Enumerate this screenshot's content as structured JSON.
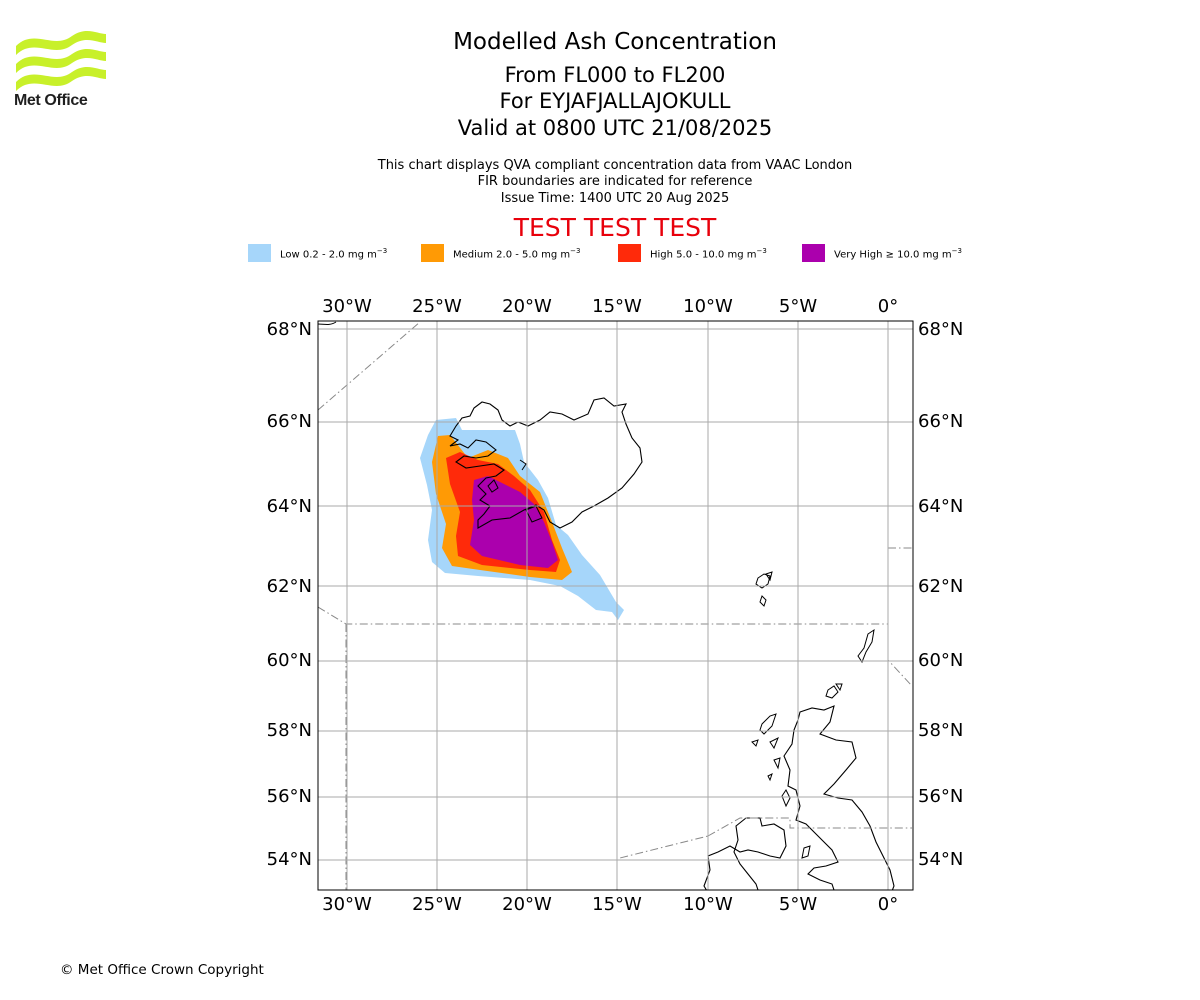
{
  "logo": {
    "text": "Met Office",
    "color": "#c8f02a"
  },
  "header": {
    "title": "Modelled Ash Concentration",
    "levels": "From FL000 to FL200",
    "volcano": "For EYJAFJALLAJOKULL",
    "valid": "Valid at 0800 UTC 21/08/2025",
    "note1": "This chart displays QVA compliant concentration data from VAAC London",
    "note2": "FIR boundaries are indicated for reference",
    "issue": "Issue Time: 1400 UTC 20 Aug 2025",
    "test": "TEST TEST TEST"
  },
  "legend": [
    {
      "label": "Low 0.2 - 2.0 mg m",
      "color": "#a6d6fa"
    },
    {
      "label": "Medium 2.0 - 5.0 mg m",
      "color": "#ff9a05"
    },
    {
      "label": "High 5.0 - 10.0 mg m",
      "color": "#ff2a0a"
    },
    {
      "label": "Very High ≥ 10.0 mg m",
      "color": "#ab00ad"
    }
  ],
  "legend_unit_exp": "−3",
  "map": {
    "lon_ticks": [
      "30°W",
      "25°W",
      "20°W",
      "15°W",
      "10°W",
      "5°W",
      "0°"
    ],
    "lat_ticks": [
      "68°N",
      "66°N",
      "64°N",
      "62°N",
      "60°N",
      "58°N",
      "56°N",
      "54°N"
    ]
  },
  "footer": {
    "copyright": "© Met Office Crown Copyright"
  }
}
